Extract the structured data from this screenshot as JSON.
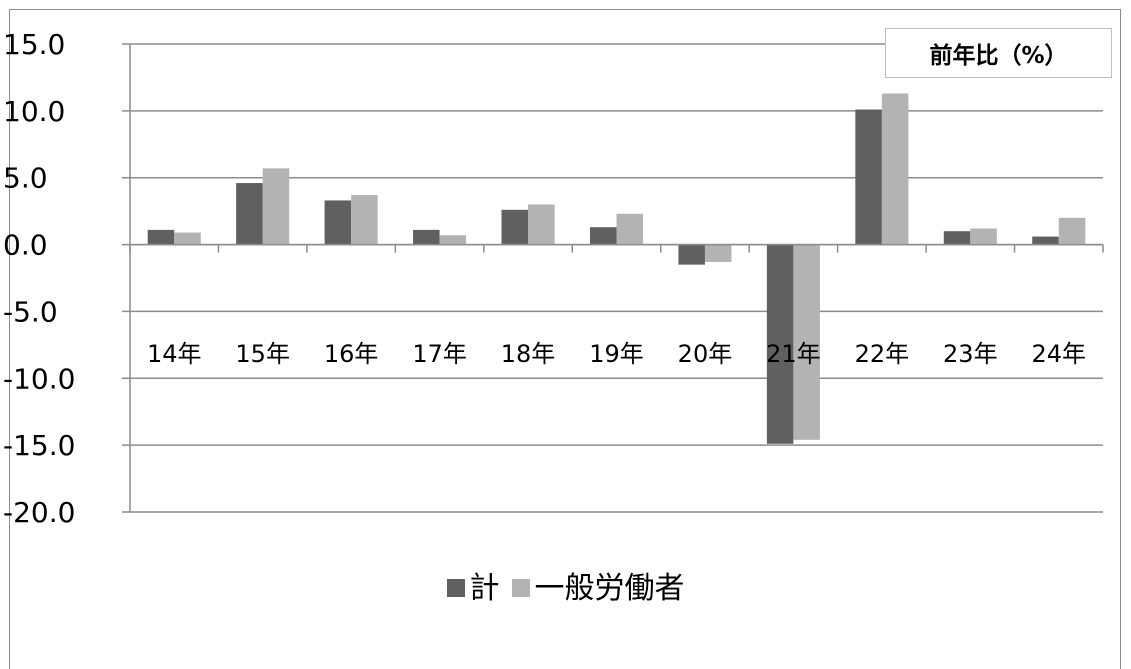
{
  "chart_data": {
    "type": "bar",
    "title": "前年比（%）",
    "categories": [
      "14年",
      "15年",
      "16年",
      "17年",
      "18年",
      "19年",
      "20年",
      "21年",
      "22年",
      "23年",
      "24年"
    ],
    "series": [
      {
        "name": "計",
        "color": "#606060",
        "values": [
          1.1,
          4.6,
          3.3,
          1.1,
          2.6,
          1.3,
          -1.5,
          -14.9,
          10.1,
          1.0,
          0.6
        ]
      },
      {
        "name": "一般労働者",
        "color": "#b3b3b3",
        "values": [
          0.9,
          5.7,
          3.7,
          0.7,
          3.0,
          2.3,
          -1.3,
          -14.6,
          11.3,
          1.2,
          2.0
        ]
      }
    ],
    "ylim": [
      -20,
      15
    ],
    "yticks": [
      "15.0",
      "10.0",
      "5.0",
      "0.0",
      "-5.0",
      "-10.0",
      "-15.0",
      "-20.0"
    ],
    "grid": true,
    "legend_position": "bottom"
  }
}
